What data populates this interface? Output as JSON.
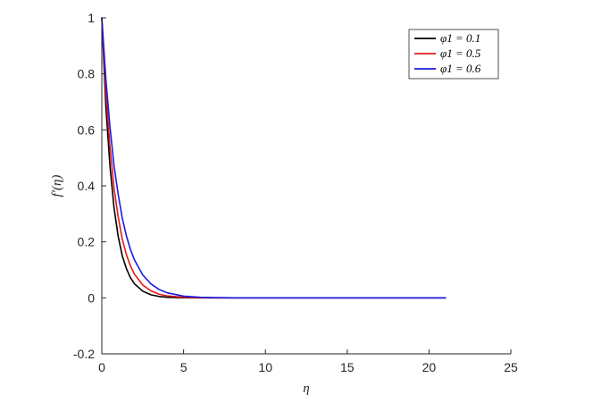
{
  "chart_data": {
    "type": "line",
    "title": "",
    "xlabel": "η",
    "ylabel": "f′(η)",
    "xlim": [
      0,
      25
    ],
    "ylim": [
      -0.2,
      1
    ],
    "xticks": [
      0,
      5,
      10,
      15,
      20,
      25
    ],
    "xtick_labels": [
      "0",
      "5",
      "10",
      "15",
      "20",
      "25"
    ],
    "yticks": [
      -0.2,
      0,
      0.2,
      0.4,
      0.6,
      0.8,
      1
    ],
    "ytick_labels": [
      "-0.2",
      "0",
      "0.2",
      "0.4",
      "0.6",
      "0.8",
      "1"
    ],
    "grid": false,
    "legend_position": "top-right",
    "x": [
      0,
      0.25,
      0.5,
      0.75,
      1,
      1.25,
      1.5,
      1.75,
      2,
      2.5,
      3,
      3.5,
      4,
      5,
      6,
      7,
      8,
      10,
      12,
      15,
      18,
      21
    ],
    "series": [
      {
        "name": "φ1 = 0.1",
        "color": "#000000",
        "values": [
          1,
          0.68,
          0.47,
          0.32,
          0.22,
          0.15,
          0.105,
          0.072,
          0.05,
          0.024,
          0.011,
          0.005,
          0.002,
          0.0005,
          0.0001,
          0,
          0,
          0,
          0,
          0,
          0,
          0
        ]
      },
      {
        "name": "φ1 = 0.5",
        "color": "#e41a1a",
        "values": [
          1,
          0.73,
          0.54,
          0.39,
          0.29,
          0.21,
          0.155,
          0.114,
          0.084,
          0.046,
          0.025,
          0.013,
          0.007,
          0.002,
          0.0006,
          0.0002,
          0,
          0,
          0,
          0,
          0,
          0
        ]
      },
      {
        "name": "φ1 = 0.6",
        "color": "#1a1ae4",
        "values": [
          1,
          0.78,
          0.61,
          0.47,
          0.37,
          0.285,
          0.222,
          0.173,
          0.135,
          0.082,
          0.05,
          0.03,
          0.018,
          0.006,
          0.002,
          0.0007,
          0.0002,
          0,
          0,
          0,
          0,
          0
        ]
      }
    ]
  }
}
